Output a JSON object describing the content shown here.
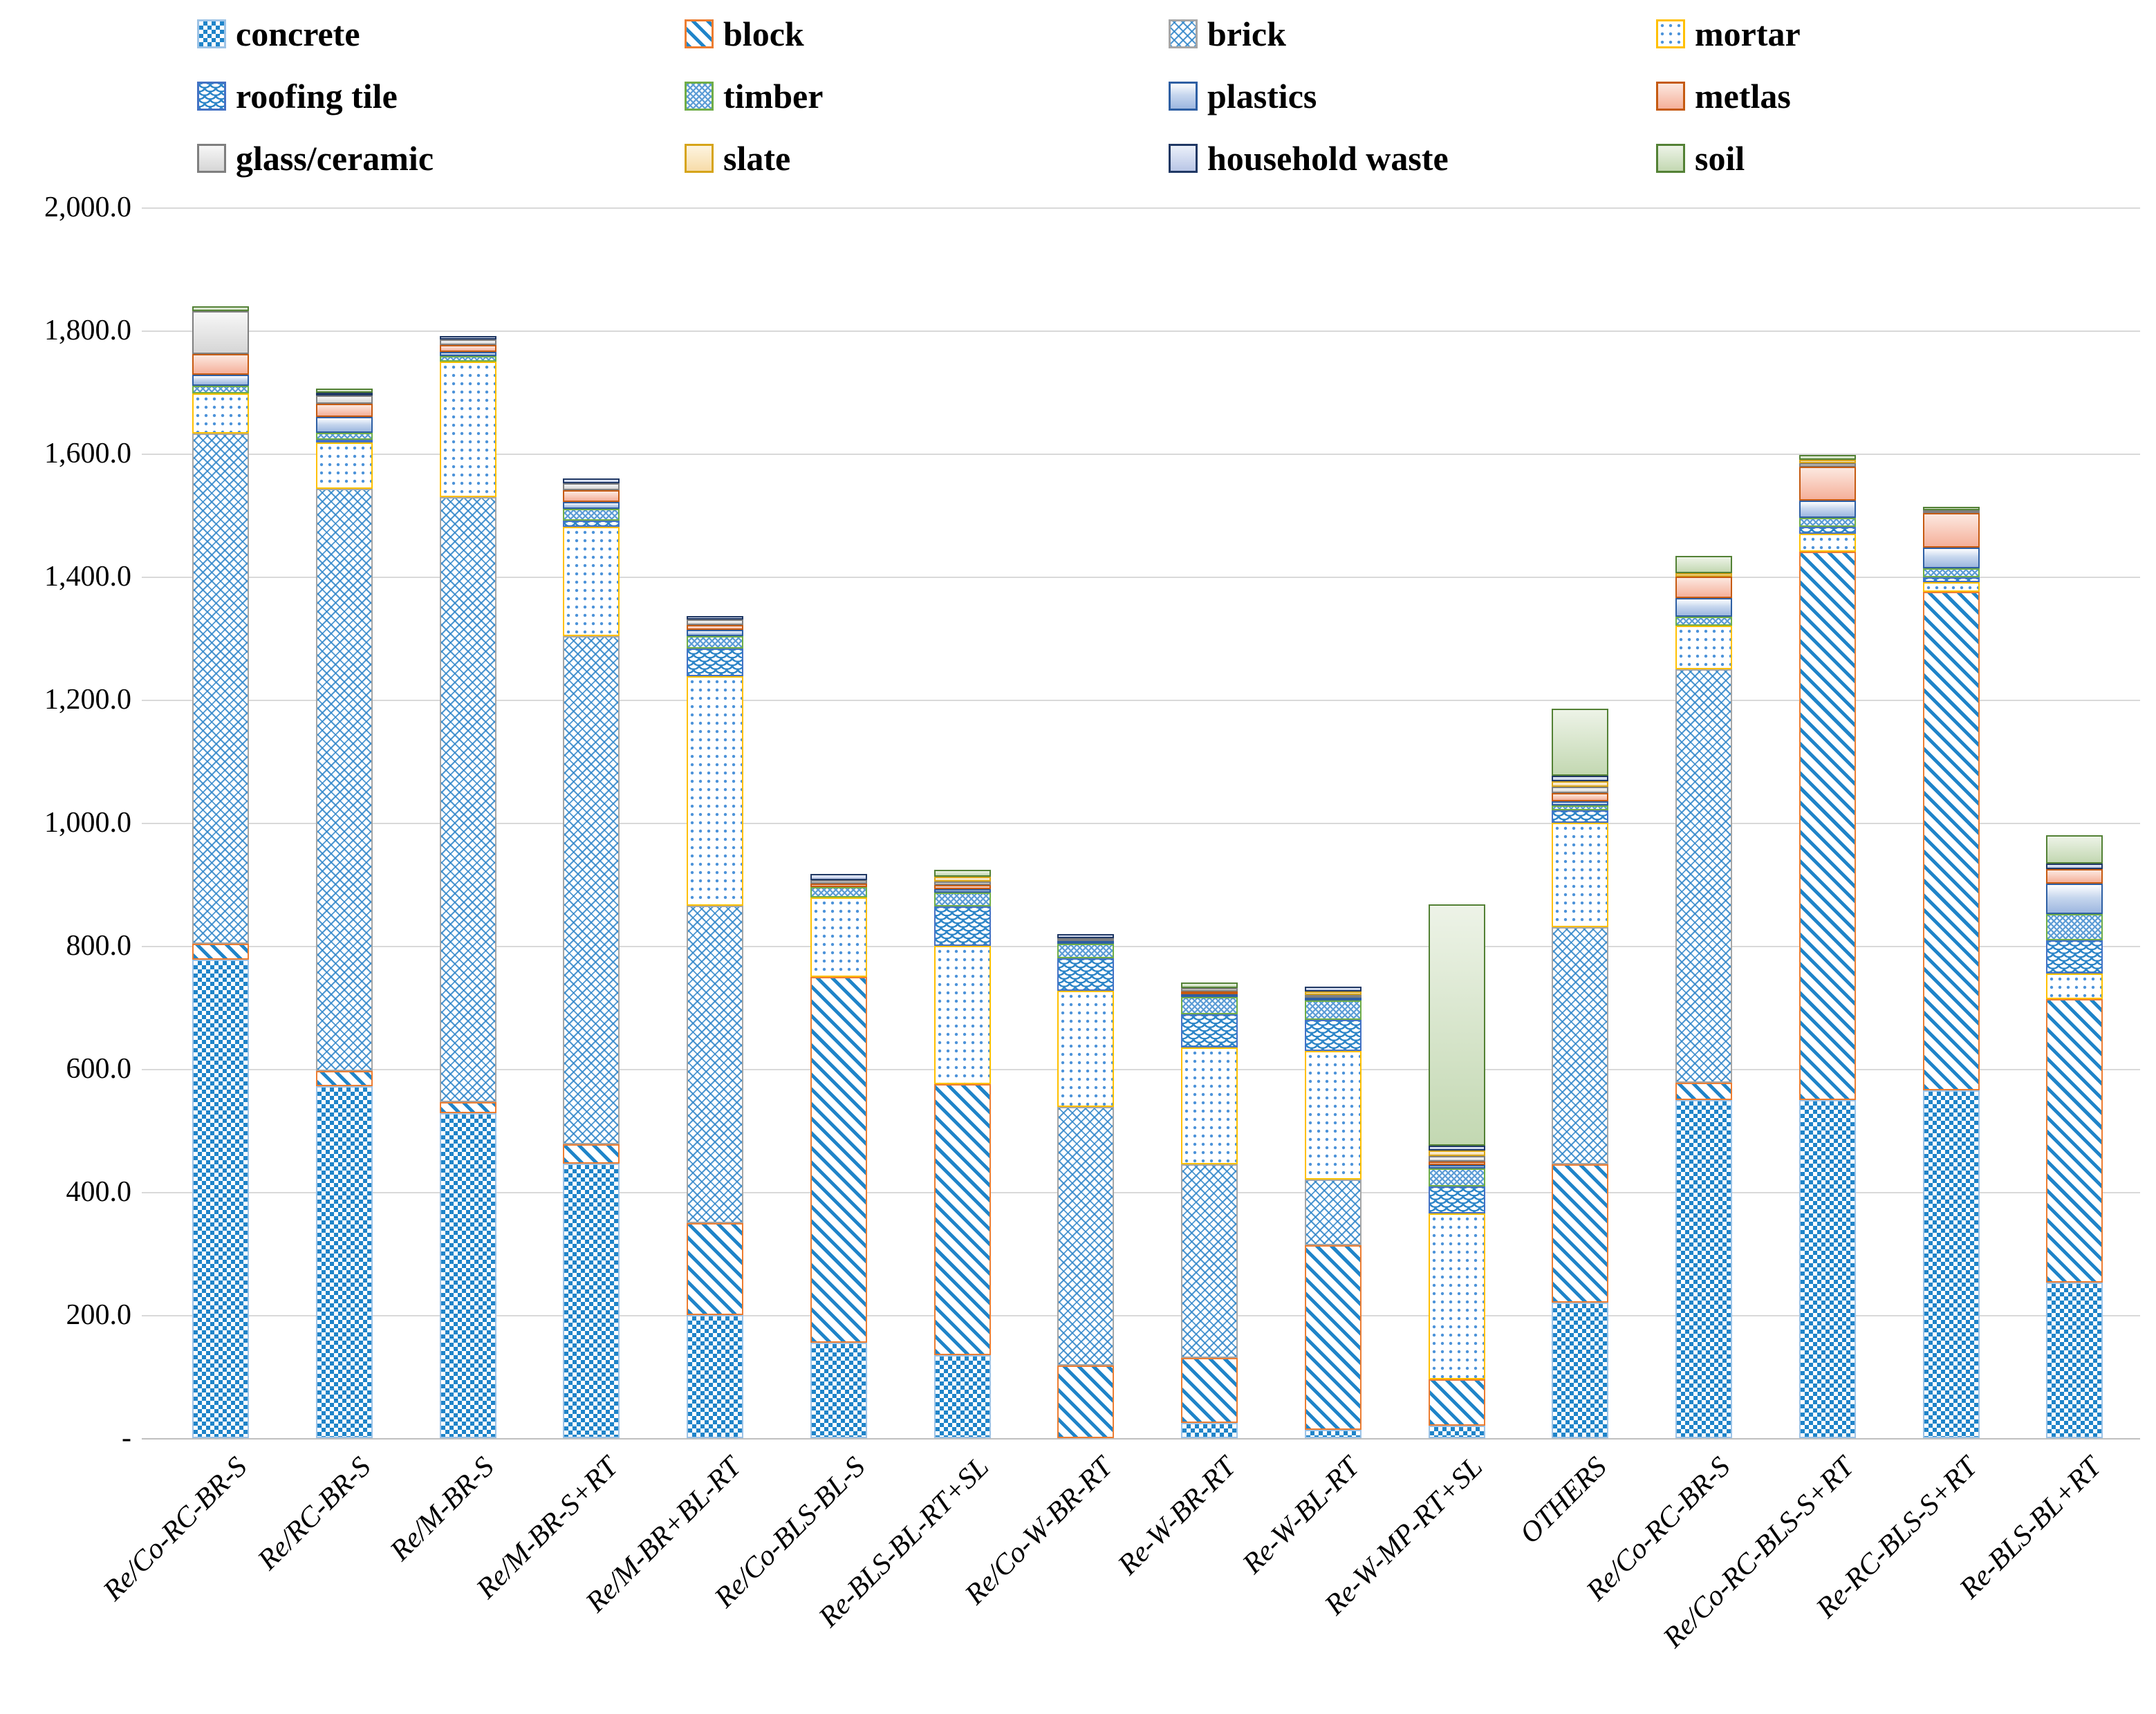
{
  "chart_data": {
    "type": "bar",
    "subtype": "stacked-vertical",
    "title": "",
    "xlabel": "",
    "ylabel": "",
    "ylim": [
      0,
      2000
    ],
    "grid": "horizontal",
    "legend_position": "top",
    "y_ticks": [
      {
        "label": "2,000.0",
        "value": 2000
      },
      {
        "label": "1,800.0",
        "value": 1800
      },
      {
        "label": "1,600.0",
        "value": 1600
      },
      {
        "label": "1,400.0",
        "value": 1400
      },
      {
        "label": "1,200.0",
        "value": 1200
      },
      {
        "label": "1,000.0",
        "value": 1000
      },
      {
        "label": "800.0",
        "value": 800
      },
      {
        "label": "600.0",
        "value": 600
      },
      {
        "label": "400.0",
        "value": 400
      },
      {
        "label": "200.0",
        "value": 200
      },
      {
        "label": "-",
        "value": 0
      }
    ],
    "categories": [
      "Re/Co-RC-BR-S",
      "Re/RC-BR-S",
      "Re/M-BR-S",
      "Re/M-BR-S+RT",
      "Re/M-BR+BL-RT",
      "Re/Co-BLS-BL-S",
      "Re-BLS-BL-RT+SL",
      "Re/Co-W-BR-RT",
      "Re-W-BR-RT",
      "Re-W-BL-RT",
      "Re-W-MP-RT+SL",
      "OTHERS",
      "Re/Co-RC-BR-S",
      "Re/Co-RC-BLS-S+RT",
      "Re-RC-BLS-S+RT",
      "Re-BLS-BL+RT"
    ],
    "series": [
      {
        "name": "concrete",
        "key": "concrete",
        "swatch_fill": "#FFFFFF",
        "pattern_color": "#1F84C9",
        "border": "#9DC3E6",
        "values": [
          778,
          572,
          528,
          446,
          200,
          155,
          135,
          0,
          25,
          14,
          20,
          220,
          550,
          550,
          565,
          253
        ]
      },
      {
        "name": "block",
        "key": "block",
        "swatch_fill": "#FFFFFF",
        "pattern_color": "#1F84C9",
        "border": "#ED7D31",
        "values": [
          25,
          25,
          18,
          32,
          150,
          595,
          440,
          118,
          105,
          299,
          75,
          225,
          27,
          890,
          810,
          460
        ]
      },
      {
        "name": "brick",
        "key": "brick",
        "swatch_fill": "#FFFFFF",
        "pattern_color": "#2F85C9",
        "border": "#A6A6A6",
        "values": [
          830,
          946,
          983,
          825,
          515,
          0,
          0,
          420,
          315,
          107,
          0,
          385,
          673,
          0,
          0,
          0
        ]
      },
      {
        "name": "mortar",
        "key": "mortar",
        "swatch_fill": "#FFFFFF",
        "pattern_color": "#4D93D9",
        "border": "#FFC000",
        "values": [
          65,
          75,
          221,
          178,
          373,
          129,
          225,
          189,
          190,
          209,
          270,
          170,
          70,
          30,
          16,
          42
        ]
      },
      {
        "name": "roofing tile",
        "key": "rooftile",
        "swatch_fill": "#FFFFFF",
        "pattern_color": "#2E86C8",
        "border": "#4472C4",
        "values": [
          0,
          4,
          0,
          10,
          45,
          0,
          64,
          53,
          54,
          51,
          44,
          20,
          0,
          11,
          8,
          54
        ]
      },
      {
        "name": "timber",
        "key": "timber",
        "swatch_fill": "#F2F8FD",
        "pattern_color": "#5B9BD5",
        "border": "#70AD47",
        "values": [
          12,
          11,
          8,
          19,
          20,
          16,
          23,
          23,
          28,
          31,
          29,
          8,
          15,
          15,
          14,
          43
        ]
      },
      {
        "name": "plastics",
        "key": "plastics",
        "swatch_fill": "#C7D7EE",
        "pattern_color": "#C7D7EE",
        "border": "#2E5FA3",
        "values": [
          18,
          26,
          7,
          11,
          10,
          0,
          5,
          3,
          4,
          3,
          6,
          7,
          30,
          28,
          34,
          49
        ]
      },
      {
        "name": "metlas",
        "key": "metlas",
        "swatch_fill": "#F5B09A",
        "pattern_color": "#F5B09A",
        "border": "#C55A11",
        "values": [
          34,
          21,
          12,
          19,
          8,
          6,
          7,
          0,
          3,
          0,
          6,
          13,
          35,
          55,
          56,
          24
        ]
      },
      {
        "name": "glass/ceramic",
        "key": "glass",
        "swatch_fill": "#D6D6D6",
        "pattern_color": "#D6D6D6",
        "border": "#7F7F7F",
        "values": [
          70,
          14,
          9,
          12,
          9,
          6,
          6,
          5,
          5,
          5,
          8,
          10,
          0,
          5,
          4,
          0
        ]
      },
      {
        "name": "slate",
        "key": "slate",
        "swatch_fill": "#F7DCA9",
        "pattern_color": "#F7DCA9",
        "border": "#D6A419",
        "values": [
          0,
          0,
          0,
          0,
          0,
          0,
          8,
          0,
          0,
          6,
          10,
          10,
          6,
          6,
          0,
          0
        ]
      },
      {
        "name": "household waste",
        "key": "household",
        "swatch_fill": "#B9C6E6",
        "pattern_color": "#B9C6E6",
        "border": "#203864",
        "values": [
          0,
          3,
          5,
          8,
          6,
          10,
          0,
          7,
          0,
          7,
          7,
          8,
          0,
          0,
          0,
          9
        ]
      },
      {
        "name": "soil",
        "key": "soil",
        "swatch_fill": "#C3D8B2",
        "pattern_color": "#C3D8B2",
        "border": "#538135",
        "values": [
          7,
          7,
          0,
          0,
          0,
          0,
          11,
          0,
          9,
          0,
          392,
          110,
          28,
          8,
          6,
          46
        ]
      }
    ]
  },
  "layout_colors": {
    "gridline": "#D9D9D9",
    "axis_line": "#BFBFBF",
    "text": "#000000"
  }
}
